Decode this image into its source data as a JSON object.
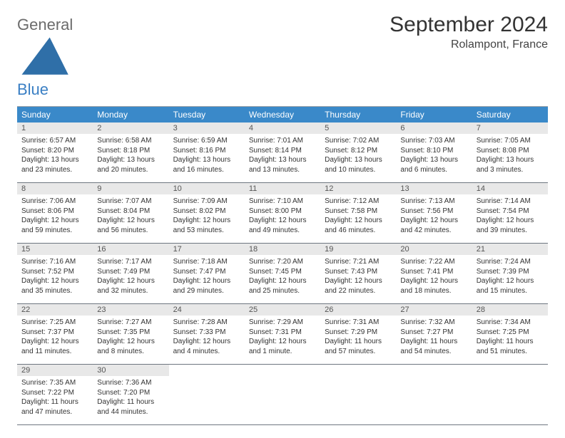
{
  "logo": {
    "general": "General",
    "blue": "Blue"
  },
  "header": {
    "month_title": "September 2024",
    "location": "Rolampont, France"
  },
  "colors": {
    "header_bg": "#3a89c9",
    "daynum_bg": "#e8e8e8",
    "row_border": "#6e7680",
    "logo_blue": "#3a7fc4",
    "logo_gray": "#6b6b6b"
  },
  "weekdays": [
    "Sunday",
    "Monday",
    "Tuesday",
    "Wednesday",
    "Thursday",
    "Friday",
    "Saturday"
  ],
  "weeks": [
    [
      {
        "n": "1",
        "sunrise": "Sunrise: 6:57 AM",
        "sunset": "Sunset: 8:20 PM",
        "daylight": "Daylight: 13 hours and 23 minutes."
      },
      {
        "n": "2",
        "sunrise": "Sunrise: 6:58 AM",
        "sunset": "Sunset: 8:18 PM",
        "daylight": "Daylight: 13 hours and 20 minutes."
      },
      {
        "n": "3",
        "sunrise": "Sunrise: 6:59 AM",
        "sunset": "Sunset: 8:16 PM",
        "daylight": "Daylight: 13 hours and 16 minutes."
      },
      {
        "n": "4",
        "sunrise": "Sunrise: 7:01 AM",
        "sunset": "Sunset: 8:14 PM",
        "daylight": "Daylight: 13 hours and 13 minutes."
      },
      {
        "n": "5",
        "sunrise": "Sunrise: 7:02 AM",
        "sunset": "Sunset: 8:12 PM",
        "daylight": "Daylight: 13 hours and 10 minutes."
      },
      {
        "n": "6",
        "sunrise": "Sunrise: 7:03 AM",
        "sunset": "Sunset: 8:10 PM",
        "daylight": "Daylight: 13 hours and 6 minutes."
      },
      {
        "n": "7",
        "sunrise": "Sunrise: 7:05 AM",
        "sunset": "Sunset: 8:08 PM",
        "daylight": "Daylight: 13 hours and 3 minutes."
      }
    ],
    [
      {
        "n": "8",
        "sunrise": "Sunrise: 7:06 AM",
        "sunset": "Sunset: 8:06 PM",
        "daylight": "Daylight: 12 hours and 59 minutes."
      },
      {
        "n": "9",
        "sunrise": "Sunrise: 7:07 AM",
        "sunset": "Sunset: 8:04 PM",
        "daylight": "Daylight: 12 hours and 56 minutes."
      },
      {
        "n": "10",
        "sunrise": "Sunrise: 7:09 AM",
        "sunset": "Sunset: 8:02 PM",
        "daylight": "Daylight: 12 hours and 53 minutes."
      },
      {
        "n": "11",
        "sunrise": "Sunrise: 7:10 AM",
        "sunset": "Sunset: 8:00 PM",
        "daylight": "Daylight: 12 hours and 49 minutes."
      },
      {
        "n": "12",
        "sunrise": "Sunrise: 7:12 AM",
        "sunset": "Sunset: 7:58 PM",
        "daylight": "Daylight: 12 hours and 46 minutes."
      },
      {
        "n": "13",
        "sunrise": "Sunrise: 7:13 AM",
        "sunset": "Sunset: 7:56 PM",
        "daylight": "Daylight: 12 hours and 42 minutes."
      },
      {
        "n": "14",
        "sunrise": "Sunrise: 7:14 AM",
        "sunset": "Sunset: 7:54 PM",
        "daylight": "Daylight: 12 hours and 39 minutes."
      }
    ],
    [
      {
        "n": "15",
        "sunrise": "Sunrise: 7:16 AM",
        "sunset": "Sunset: 7:52 PM",
        "daylight": "Daylight: 12 hours and 35 minutes."
      },
      {
        "n": "16",
        "sunrise": "Sunrise: 7:17 AM",
        "sunset": "Sunset: 7:49 PM",
        "daylight": "Daylight: 12 hours and 32 minutes."
      },
      {
        "n": "17",
        "sunrise": "Sunrise: 7:18 AM",
        "sunset": "Sunset: 7:47 PM",
        "daylight": "Daylight: 12 hours and 29 minutes."
      },
      {
        "n": "18",
        "sunrise": "Sunrise: 7:20 AM",
        "sunset": "Sunset: 7:45 PM",
        "daylight": "Daylight: 12 hours and 25 minutes."
      },
      {
        "n": "19",
        "sunrise": "Sunrise: 7:21 AM",
        "sunset": "Sunset: 7:43 PM",
        "daylight": "Daylight: 12 hours and 22 minutes."
      },
      {
        "n": "20",
        "sunrise": "Sunrise: 7:22 AM",
        "sunset": "Sunset: 7:41 PM",
        "daylight": "Daylight: 12 hours and 18 minutes."
      },
      {
        "n": "21",
        "sunrise": "Sunrise: 7:24 AM",
        "sunset": "Sunset: 7:39 PM",
        "daylight": "Daylight: 12 hours and 15 minutes."
      }
    ],
    [
      {
        "n": "22",
        "sunrise": "Sunrise: 7:25 AM",
        "sunset": "Sunset: 7:37 PM",
        "daylight": "Daylight: 12 hours and 11 minutes."
      },
      {
        "n": "23",
        "sunrise": "Sunrise: 7:27 AM",
        "sunset": "Sunset: 7:35 PM",
        "daylight": "Daylight: 12 hours and 8 minutes."
      },
      {
        "n": "24",
        "sunrise": "Sunrise: 7:28 AM",
        "sunset": "Sunset: 7:33 PM",
        "daylight": "Daylight: 12 hours and 4 minutes."
      },
      {
        "n": "25",
        "sunrise": "Sunrise: 7:29 AM",
        "sunset": "Sunset: 7:31 PM",
        "daylight": "Daylight: 12 hours and 1 minute."
      },
      {
        "n": "26",
        "sunrise": "Sunrise: 7:31 AM",
        "sunset": "Sunset: 7:29 PM",
        "daylight": "Daylight: 11 hours and 57 minutes."
      },
      {
        "n": "27",
        "sunrise": "Sunrise: 7:32 AM",
        "sunset": "Sunset: 7:27 PM",
        "daylight": "Daylight: 11 hours and 54 minutes."
      },
      {
        "n": "28",
        "sunrise": "Sunrise: 7:34 AM",
        "sunset": "Sunset: 7:25 PM",
        "daylight": "Daylight: 11 hours and 51 minutes."
      }
    ],
    [
      {
        "n": "29",
        "sunrise": "Sunrise: 7:35 AM",
        "sunset": "Sunset: 7:22 PM",
        "daylight": "Daylight: 11 hours and 47 minutes."
      },
      {
        "n": "30",
        "sunrise": "Sunrise: 7:36 AM",
        "sunset": "Sunset: 7:20 PM",
        "daylight": "Daylight: 11 hours and 44 minutes."
      },
      null,
      null,
      null,
      null,
      null
    ]
  ]
}
